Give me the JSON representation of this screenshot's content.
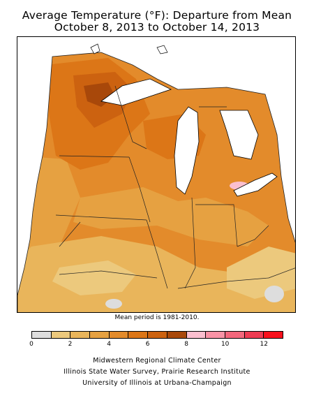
{
  "title": {
    "line1": "Average Temperature (°F): Departure from Mean",
    "line2": "October 8, 2013 to October 14, 2013"
  },
  "note": "Mean period is 1981-2010.",
  "legend": {
    "ticks": [
      "0",
      "2",
      "4",
      "6",
      "8",
      "10",
      "12"
    ],
    "colors": [
      "#dddddd",
      "#ecc97d",
      "#e9b55b",
      "#e6a141",
      "#e38b2b",
      "#dc7617",
      "#cc6210",
      "#a8480a",
      "#fbbfcf",
      "#f993a6",
      "#f3677c",
      "#ee3b52",
      "#f8101c"
    ]
  },
  "credits": [
    "Midwestern Regional Climate Center",
    "Illinois State Water Survey, Prairie Research Institute",
    "University of Illinois at Urbana-Champaign"
  ]
}
